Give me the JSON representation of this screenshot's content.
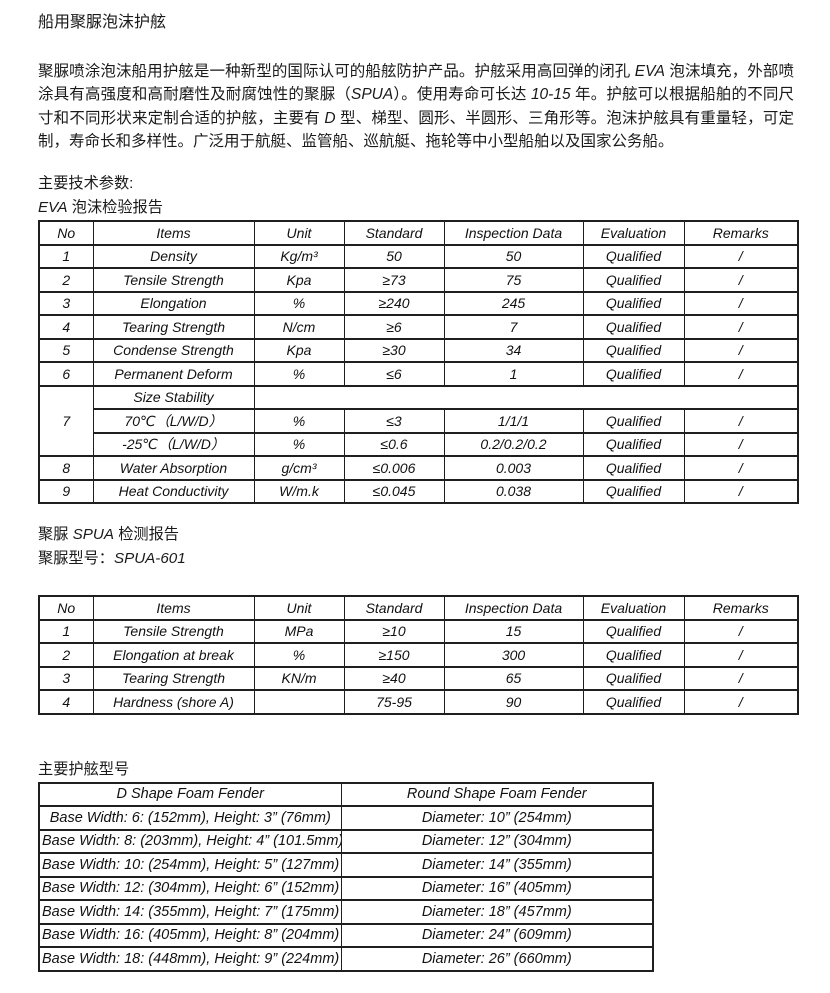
{
  "colors": {
    "background": "#ffffff",
    "text": "#1a1a1a",
    "table_border": "#1f1f1f"
  },
  "title_segments": [
    {
      "t": "船用聚脲泡沫护舷"
    }
  ],
  "intro_segments": [
    {
      "t": "聚脲喷涂泡沫船用护舷是一种新型的国际认可的船舷防护产品。护舷采用高回弹的闭孔 "
    },
    {
      "t": "EVA",
      "i": true
    },
    {
      "t": " 泡沫填充，外部喷涂具有高强度和高耐磨性及耐腐蚀性的聚脲（"
    },
    {
      "t": "SPUA",
      "i": true
    },
    {
      "t": "）。使用寿命可长达 "
    },
    {
      "t": "10-15",
      "i": true
    },
    {
      "t": " 年。护舷可以根据船舶的不同尺寸和不同形状来定制合适的护舷，主要有 "
    },
    {
      "t": "D",
      "i": true
    },
    {
      "t": " 型、梯型、圆形、半圆形、三角形等。泡沫护舷具有重量轻，可定制，寿命长和多样性。广泛用于航艇、监管船、巡航艇、拖轮等中小型船舶以及国家公务船。"
    }
  ],
  "headings": {
    "tech_params": [
      {
        "t": "主要技术参数:"
      }
    ],
    "eva_report": [
      {
        "t": "EVA",
        "i": true
      },
      {
        "t": " 泡沫检验报告"
      }
    ],
    "spua_report": [
      {
        "t": "聚脲 "
      },
      {
        "t": "SPUA",
        "i": true
      },
      {
        "t": " 检测报告"
      }
    ],
    "spua_model": [
      {
        "t": "聚脲型号："
      },
      {
        "t": "SPUA-601",
        "i": true
      }
    ],
    "fender_models": [
      {
        "t": "主要护舷型号"
      }
    ]
  },
  "eva_table": {
    "header": [
      "No",
      "Items",
      "Unit",
      "Standard",
      "Inspection Data",
      "Evaluation",
      "Remarks"
    ],
    "rows": [
      [
        "1",
        "Density",
        "Kg/m³",
        "50",
        "50",
        "Qualified",
        "/"
      ],
      [
        "2",
        "Tensile Strength",
        "Kpa",
        "≥73",
        "75",
        "Qualified",
        "/"
      ],
      [
        "3",
        "Elongation",
        "%",
        "≥240",
        "245",
        "Qualified",
        "/"
      ],
      [
        "4",
        "Tearing Strength",
        "N/cm",
        "≥6",
        "7",
        "Qualified",
        "/"
      ],
      [
        "5",
        "Condense Strength",
        "Kpa",
        "≥30",
        "34",
        "Qualified",
        "/"
      ],
      [
        "6",
        "Permanent Deform",
        "%",
        "≤6",
        "1",
        "Qualified",
        "/"
      ],
      [
        {
          "t": "7",
          "rs": 3
        },
        "Size Stability",
        {
          "t": "",
          "cs": 5
        }
      ],
      [
        "70℃（L/W/D）",
        "%",
        "≤3",
        "1/1/1",
        "Qualified",
        "/"
      ],
      [
        "-25℃（L/W/D）",
        "%",
        "≤0.6",
        "0.2/0.2/0.2",
        "Qualified",
        "/"
      ],
      [
        "8",
        "Water Absorption",
        "g/cm³",
        "≤0.006",
        "0.003",
        "Qualified",
        "/"
      ],
      [
        "9",
        "Heat Conductivity",
        "W/m.k",
        "≤0.045",
        "0.038",
        "Qualified",
        "/"
      ]
    ]
  },
  "spua_table": {
    "header": [
      "No",
      "Items",
      "Unit",
      "Standard",
      "Inspection Data",
      "Evaluation",
      "Remarks"
    ],
    "rows": [
      [
        "1",
        "Tensile Strength",
        "MPa",
        "≥10",
        "15",
        "Qualified",
        "/"
      ],
      [
        "2",
        "Elongation at break",
        "%",
        "≥150",
        "300",
        "Qualified",
        "/"
      ],
      [
        "3",
        "Tearing Strength",
        "KN/m",
        "≥40",
        "65",
        "Qualified",
        "/"
      ],
      [
        "4",
        "Hardness (shore A)",
        "",
        "75-95",
        "90",
        "Qualified",
        "/"
      ]
    ]
  },
  "fender_table": {
    "header": [
      "D Shape Foam Fender",
      "Round Shape Foam Fender"
    ],
    "rows": [
      [
        "Base Width: 6: (152mm), Height: 3” (76mm)",
        "Diameter: 10” (254mm)"
      ],
      [
        "Base Width: 8: (203mm), Height: 4” (101.5mm)",
        "Diameter: 12” (304mm)"
      ],
      [
        "Base Width: 10: (254mm), Height: 5” (127mm)",
        "Diameter: 14” (355mm)"
      ],
      [
        "Base Width: 12: (304mm), Height: 6” (152mm)",
        "Diameter: 16” (405mm)"
      ],
      [
        "Base Width: 14: (355mm), Height: 7” (175mm)",
        "Diameter: 18” (457mm)"
      ],
      [
        "Base Width: 16: (405mm), Height: 8” (204mm)",
        "Diameter: 24” (609mm)"
      ],
      [
        "Base Width: 18: (448mm), Height: 9” (224mm)",
        "Diameter: 26” (660mm)"
      ]
    ]
  }
}
